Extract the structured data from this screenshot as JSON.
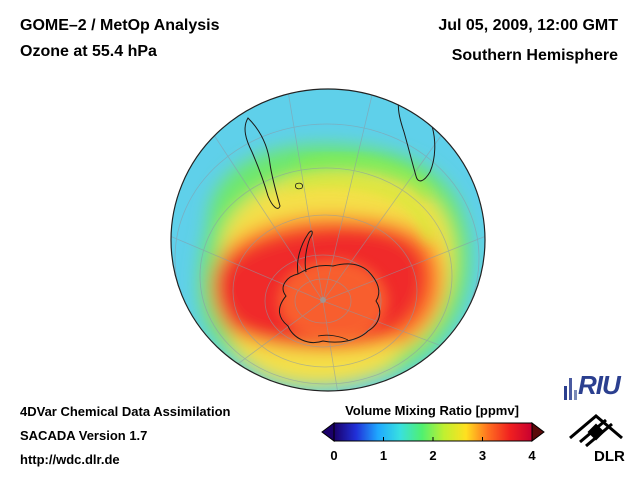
{
  "header": {
    "title_line1": "GOME–2 / MetOp Analysis",
    "title_line2": "Ozone at 55.4 hPa",
    "date_line": "Jul 05, 2009, 12:00 GMT",
    "region_line": "Southern Hemisphere"
  },
  "footer": {
    "line1": "4DVar Chemical Data Assimilation",
    "line2": "SACADA Version 1.7",
    "line3": "http://wdc.dlr.de"
  },
  "colorbar": {
    "title": "Volume Mixing Ratio [ppmv]",
    "min": 0,
    "max": 4,
    "ticks": [
      "0",
      "1",
      "2",
      "3",
      "4"
    ],
    "stops": [
      "#1a006a",
      "#2030d8",
      "#1fa8ff",
      "#38e0e0",
      "#50f070",
      "#c0f030",
      "#ffe020",
      "#ff7020",
      "#f02020",
      "#c80030"
    ]
  },
  "map": {
    "projection": "orthographic, south pole centered",
    "field_colors": {
      "tropics": "#5fd0ea",
      "midlat": "#60e070",
      "collar": "#f02a2a",
      "vortex_core": "#ffb030"
    }
  },
  "logos": {
    "riu_text": "RIU",
    "dlr_text": "DLR",
    "riu_color": "#2b3f8f"
  }
}
